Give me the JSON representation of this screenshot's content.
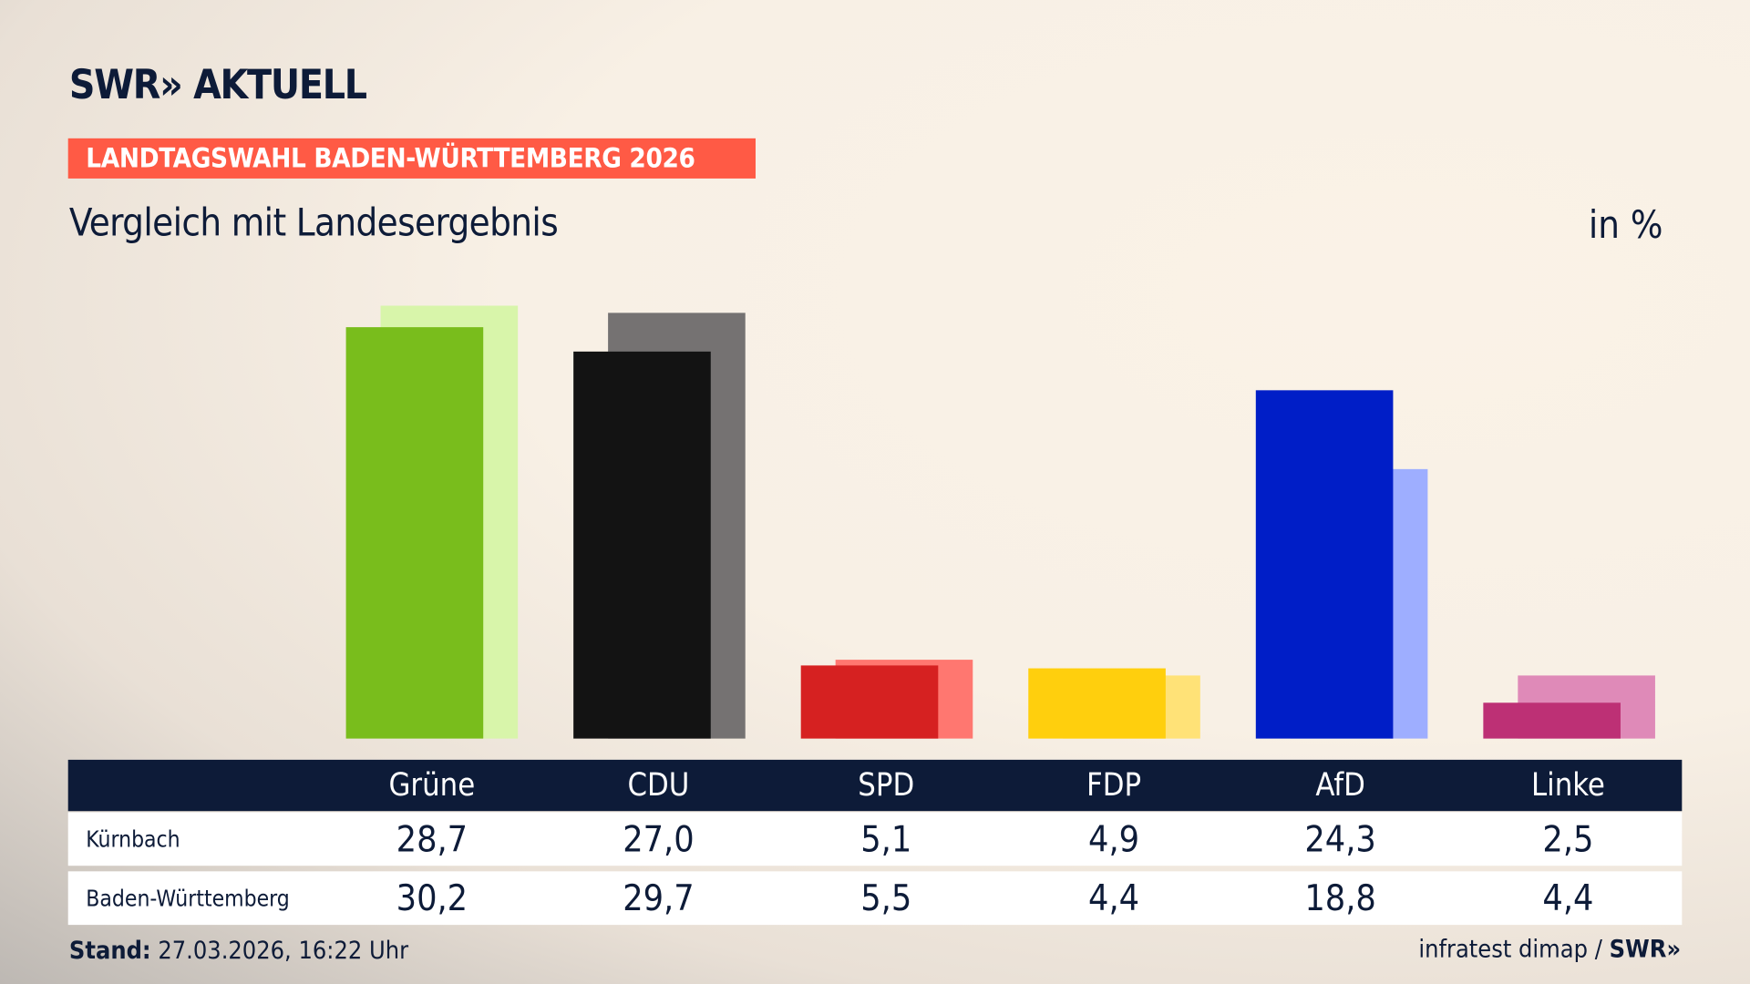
{
  "header": {
    "logo": "SWR» AKTUELL",
    "badge": "LANDTAGSWAHL BADEN-WÜRTTEMBERG 2026",
    "subtitle": "Vergleich mit Landesergebnis",
    "unit": "in %"
  },
  "footer": {
    "stand_label": "Stand:",
    "stand_value": " 27.03.2026, 16:22 Uhr",
    "source": "infratest dimap / ",
    "source_logo": "SWR»"
  },
  "chart_data": {
    "type": "bar",
    "categories": [
      "Grüne",
      "CDU",
      "SPD",
      "FDP",
      "AfD",
      "Linke"
    ],
    "series": [
      {
        "name": "Kürnbach",
        "values": [
          "28,7",
          "27,0",
          "5,1",
          "4,9",
          "24,3",
          "2,5"
        ],
        "colors": [
          "#79bd1c",
          "#131313",
          "#d62121",
          "#ffcf0d",
          "#001ec7",
          "#bd3075"
        ]
      },
      {
        "name": "Baden-Württemberg",
        "values": [
          "30,2",
          "29,7",
          "5,5",
          "4,4",
          "18,8",
          "4,4"
        ],
        "colors": [
          "#d8f5aa",
          "#757272",
          "#ff7770",
          "#ffe277",
          "#9eaeff",
          "#df8ab8"
        ]
      }
    ],
    "ylim": [
      0,
      31
    ]
  }
}
